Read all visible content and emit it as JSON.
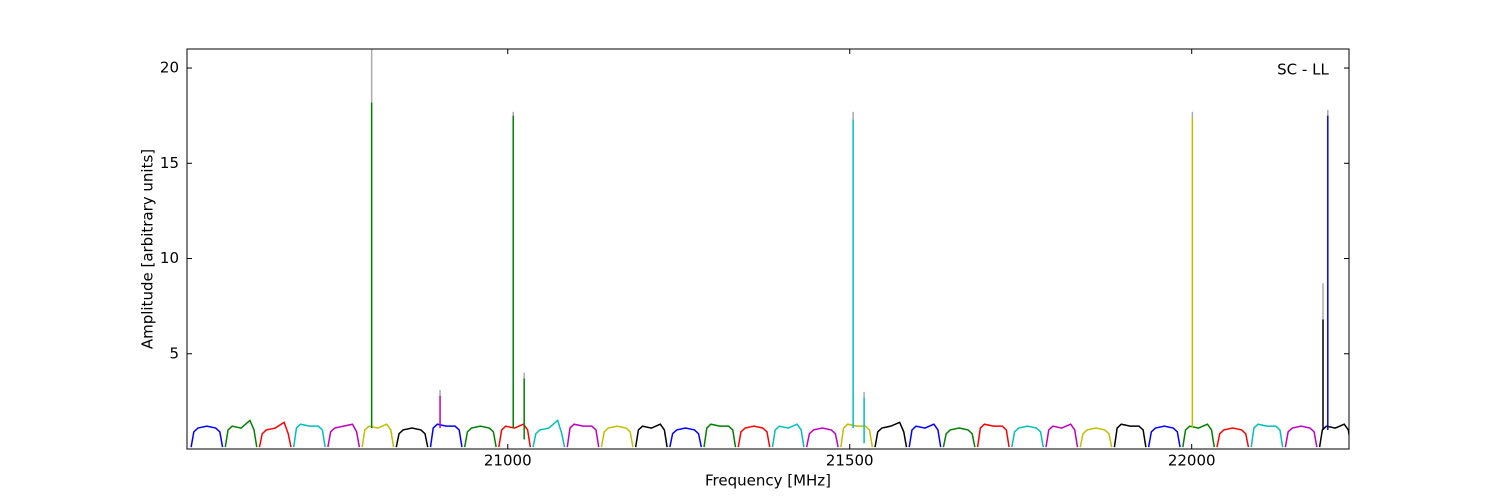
{
  "chart_data": {
    "type": "line",
    "annotation": "SC - LL",
    "x_label": "Frequency [MHz]",
    "y_label": "Amplitude [arbitrary units]",
    "xlim": [
      20531,
      22230
    ],
    "ylim": [
      0,
      21
    ],
    "xticks": [
      21000,
      21500,
      22000
    ],
    "yticks": [
      5,
      10,
      15,
      20
    ],
    "grid": false,
    "series": [
      {
        "color": "#0000ff",
        "x": [
          20537,
          20541,
          20547,
          20560,
          20573,
          20579,
          20583
        ],
        "values": [
          0.1,
          0.9,
          1.1,
          1.2,
          1.1,
          0.9,
          0.1
        ]
      },
      {
        "color": "#008000",
        "x": [
          20587,
          20591,
          20597,
          20610,
          20623,
          20629,
          20633
        ],
        "values": [
          0.1,
          1.0,
          1.2,
          1.1,
          1.5,
          1.0,
          0.1
        ]
      },
      {
        "color": "#ff0000",
        "x": [
          20637,
          20641,
          20647,
          20660,
          20673,
          20679,
          20683
        ],
        "values": [
          0.1,
          0.8,
          1.0,
          1.1,
          1.4,
          0.8,
          0.1
        ]
      },
      {
        "color": "#00bfbf",
        "x": [
          20687,
          20691,
          20697,
          20710,
          20723,
          20729,
          20733
        ],
        "values": [
          0.1,
          1.1,
          1.3,
          1.2,
          1.2,
          1.0,
          0.1
        ]
      },
      {
        "color": "#bf00bf",
        "x": [
          20737,
          20741,
          20747,
          20760,
          20773,
          20779,
          20783
        ],
        "values": [
          0.1,
          0.9,
          1.1,
          1.2,
          1.3,
          0.9,
          0.1
        ]
      },
      {
        "color": "#bfbf00",
        "x": [
          20787,
          20791,
          20797,
          20810,
          20823,
          20829,
          20833
        ],
        "values": [
          0.1,
          1.0,
          1.2,
          1.1,
          1.3,
          1.0,
          0.1
        ]
      },
      {
        "color": "#000000",
        "x": [
          20837,
          20841,
          20847,
          20860,
          20873,
          20879,
          20883
        ],
        "values": [
          0.1,
          0.8,
          1.0,
          1.1,
          1.0,
          0.8,
          0.1
        ]
      },
      {
        "color": "#0000ff",
        "x": [
          20887,
          20891,
          20897,
          20910,
          20923,
          20929,
          20933
        ],
        "values": [
          0.1,
          1.1,
          1.3,
          1.2,
          1.2,
          1.0,
          0.1
        ]
      },
      {
        "color": "#008000",
        "x": [
          20937,
          20941,
          20947,
          20960,
          20973,
          20979,
          20983
        ],
        "values": [
          0.1,
          0.9,
          1.1,
          1.2,
          1.1,
          0.9,
          0.1
        ]
      },
      {
        "color": "#ff0000",
        "x": [
          20987,
          20991,
          20997,
          21010,
          21023,
          21029,
          21033
        ],
        "values": [
          0.1,
          1.0,
          1.2,
          1.1,
          1.3,
          1.0,
          0.1
        ]
      },
      {
        "color": "#00bfbf",
        "x": [
          21037,
          21041,
          21047,
          21060,
          21073,
          21079,
          21083
        ],
        "values": [
          0.1,
          0.8,
          1.0,
          1.1,
          1.5,
          0.8,
          0.1
        ]
      },
      {
        "color": "#bf00bf",
        "x": [
          21087,
          21091,
          21097,
          21110,
          21123,
          21129,
          21133
        ],
        "values": [
          0.1,
          1.1,
          1.3,
          1.2,
          1.2,
          1.0,
          0.1
        ]
      },
      {
        "color": "#bfbf00",
        "x": [
          21137,
          21141,
          21147,
          21160,
          21173,
          21179,
          21183
        ],
        "values": [
          0.1,
          0.9,
          1.1,
          1.2,
          1.1,
          0.9,
          0.1
        ]
      },
      {
        "color": "#000000",
        "x": [
          21187,
          21191,
          21197,
          21210,
          21223,
          21229,
          21233
        ],
        "values": [
          0.1,
          1.0,
          1.2,
          1.1,
          1.3,
          1.0,
          0.1
        ]
      },
      {
        "color": "#0000ff",
        "x": [
          21237,
          21241,
          21247,
          21260,
          21273,
          21279,
          21283
        ],
        "values": [
          0.1,
          0.8,
          1.0,
          1.1,
          1.0,
          0.8,
          0.1
        ]
      },
      {
        "color": "#008000",
        "x": [
          21287,
          21291,
          21297,
          21310,
          21323,
          21329,
          21333
        ],
        "values": [
          0.1,
          1.1,
          1.3,
          1.2,
          1.2,
          1.0,
          0.1
        ]
      },
      {
        "color": "#ff0000",
        "x": [
          21337,
          21341,
          21347,
          21360,
          21373,
          21379,
          21383
        ],
        "values": [
          0.1,
          0.9,
          1.1,
          1.2,
          1.1,
          0.9,
          0.1
        ]
      },
      {
        "color": "#00bfbf",
        "x": [
          21387,
          21391,
          21397,
          21410,
          21423,
          21429,
          21433
        ],
        "values": [
          0.1,
          1.0,
          1.2,
          1.1,
          1.3,
          1.0,
          0.1
        ]
      },
      {
        "color": "#bf00bf",
        "x": [
          21437,
          21441,
          21447,
          21460,
          21473,
          21479,
          21483
        ],
        "values": [
          0.1,
          0.8,
          1.0,
          1.1,
          1.0,
          0.8,
          0.1
        ]
      },
      {
        "color": "#bfbf00",
        "x": [
          21487,
          21491,
          21497,
          21510,
          21523,
          21529,
          21533
        ],
        "values": [
          0.1,
          1.1,
          1.3,
          1.2,
          1.2,
          1.0,
          0.1
        ]
      },
      {
        "color": "#000000",
        "x": [
          21537,
          21541,
          21547,
          21560,
          21573,
          21579,
          21583
        ],
        "values": [
          0.1,
          0.9,
          1.1,
          1.2,
          1.4,
          0.9,
          0.1
        ]
      },
      {
        "color": "#0000ff",
        "x": [
          21587,
          21591,
          21597,
          21610,
          21623,
          21629,
          21633
        ],
        "values": [
          0.1,
          1.0,
          1.2,
          1.1,
          1.3,
          1.0,
          0.1
        ]
      },
      {
        "color": "#008000",
        "x": [
          21637,
          21641,
          21647,
          21660,
          21673,
          21679,
          21683
        ],
        "values": [
          0.1,
          0.8,
          1.0,
          1.1,
          1.0,
          0.8,
          0.1
        ]
      },
      {
        "color": "#ff0000",
        "x": [
          21687,
          21691,
          21697,
          21710,
          21723,
          21729,
          21733
        ],
        "values": [
          0.1,
          1.1,
          1.3,
          1.2,
          1.2,
          1.0,
          0.1
        ]
      },
      {
        "color": "#00bfbf",
        "x": [
          21737,
          21741,
          21747,
          21760,
          21773,
          21779,
          21783
        ],
        "values": [
          0.1,
          0.9,
          1.1,
          1.2,
          1.1,
          0.9,
          0.1
        ]
      },
      {
        "color": "#bf00bf",
        "x": [
          21787,
          21791,
          21797,
          21810,
          21823,
          21829,
          21833
        ],
        "values": [
          0.1,
          1.0,
          1.2,
          1.1,
          1.3,
          1.0,
          0.1
        ]
      },
      {
        "color": "#bfbf00",
        "x": [
          21837,
          21841,
          21847,
          21860,
          21873,
          21879,
          21883
        ],
        "values": [
          0.1,
          0.8,
          1.0,
          1.1,
          1.0,
          0.8,
          0.1
        ]
      },
      {
        "color": "#000000",
        "x": [
          21887,
          21891,
          21897,
          21910,
          21923,
          21929,
          21933
        ],
        "values": [
          0.1,
          1.1,
          1.3,
          1.2,
          1.2,
          1.0,
          0.1
        ]
      },
      {
        "color": "#0000ff",
        "x": [
          21937,
          21941,
          21947,
          21960,
          21973,
          21979,
          21983
        ],
        "values": [
          0.1,
          0.9,
          1.1,
          1.2,
          1.1,
          0.9,
          0.1
        ]
      },
      {
        "color": "#008000",
        "x": [
          21987,
          21991,
          21997,
          22010,
          22023,
          22029,
          22033
        ],
        "values": [
          0.1,
          1.0,
          1.2,
          1.1,
          1.3,
          1.0,
          0.1
        ]
      },
      {
        "color": "#ff0000",
        "x": [
          22037,
          22041,
          22047,
          22060,
          22073,
          22079,
          22083
        ],
        "values": [
          0.1,
          0.8,
          1.0,
          1.1,
          1.0,
          0.8,
          0.1
        ]
      },
      {
        "color": "#00bfbf",
        "x": [
          22087,
          22091,
          22097,
          22110,
          22123,
          22129,
          22133
        ],
        "values": [
          0.1,
          1.1,
          1.3,
          1.2,
          1.2,
          1.0,
          0.1
        ]
      },
      {
        "color": "#bf00bf",
        "x": [
          22137,
          22141,
          22147,
          22160,
          22173,
          22179,
          22183
        ],
        "values": [
          0.1,
          0.9,
          1.1,
          1.2,
          1.1,
          0.9,
          0.1
        ]
      },
      {
        "color": "#000000",
        "x": [
          22187,
          22191,
          22197,
          22210,
          22223,
          22229,
          22233
        ],
        "values": [
          0.1,
          1.0,
          1.2,
          1.1,
          1.3,
          1.0,
          0.1
        ]
      },
      {
        "color": "#aaaaaa",
        "x": [
          20801,
          20801
        ],
        "values": [
          18.2,
          21
        ]
      },
      {
        "color": "#008000",
        "x": [
          20801,
          20801
        ],
        "values": [
          1.1,
          18.2
        ]
      },
      {
        "color": "#aaaaaa",
        "x": [
          20901,
          20901
        ],
        "values": [
          2.8,
          3.1
        ]
      },
      {
        "color": "#bf00bf",
        "x": [
          20901,
          20901
        ],
        "values": [
          1.1,
          2.8
        ]
      },
      {
        "color": "#aaaaaa",
        "x": [
          21008,
          21008
        ],
        "values": [
          17.5,
          17.7
        ]
      },
      {
        "color": "#008000",
        "x": [
          21008,
          21008
        ],
        "values": [
          1.1,
          17.5
        ]
      },
      {
        "color": "#aaaaaa",
        "x": [
          21024,
          21024
        ],
        "values": [
          3.7,
          4.0
        ]
      },
      {
        "color": "#008000",
        "x": [
          21024,
          21024
        ],
        "values": [
          0.5,
          3.7
        ]
      },
      {
        "color": "#aaaaaa",
        "x": [
          21505,
          21505
        ],
        "values": [
          17.3,
          17.7
        ]
      },
      {
        "color": "#00bfbf",
        "x": [
          21505,
          21505
        ],
        "values": [
          1.1,
          17.3
        ]
      },
      {
        "color": "#aaaaaa",
        "x": [
          21521,
          21521
        ],
        "values": [
          2.7,
          3.0
        ]
      },
      {
        "color": "#00bfbf",
        "x": [
          21521,
          21521
        ],
        "values": [
          0.3,
          2.7
        ]
      },
      {
        "color": "#aaaaaa",
        "x": [
          22001,
          22001
        ],
        "values": [
          17.4,
          17.7
        ]
      },
      {
        "color": "#bfbf00",
        "x": [
          22001,
          22001
        ],
        "values": [
          1.1,
          17.4
        ]
      },
      {
        "color": "#aaaaaa",
        "x": [
          22192,
          22192
        ],
        "values": [
          6.8,
          8.7
        ]
      },
      {
        "color": "#000000",
        "x": [
          22192,
          22192
        ],
        "values": [
          1.0,
          6.8
        ]
      },
      {
        "color": "#aaaaaa",
        "x": [
          22199,
          22199
        ],
        "values": [
          17.5,
          17.8
        ]
      },
      {
        "color": "#0000ff",
        "x": [
          22199,
          22199
        ],
        "values": [
          1.0,
          17.5
        ]
      }
    ]
  }
}
